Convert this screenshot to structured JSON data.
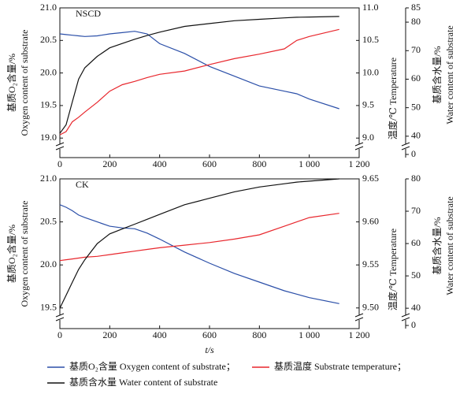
{
  "chart_data": [
    {
      "type": "line",
      "title": "NSCD",
      "x": [
        0,
        25,
        50,
        75,
        100,
        150,
        200,
        250,
        300,
        350,
        400,
        500,
        600,
        700,
        800,
        900,
        950,
        1000,
        1120
      ],
      "xlim": [
        0,
        1200
      ],
      "xticks": [
        0,
        200,
        400,
        600,
        800,
        {
          "value": 1000,
          "label": "1 000"
        },
        {
          "value": 1200,
          "label": "1 200"
        }
      ],
      "ylabel": [
        "基质O₂含量/%",
        "Oxygen content of substrate"
      ],
      "y2label": "温度/℃ Temperature",
      "y3label": [
        "基质含水量/%",
        "Water content of substrate"
      ],
      "ylim": [
        18.7,
        21.0
      ],
      "yticks": [
        {
          "value": 19.0,
          "label": "19.0"
        },
        19.5,
        {
          "value": 20.0,
          "label": "20.0"
        },
        20.5,
        {
          "value": 21.0,
          "label": "21.0"
        }
      ],
      "y2lim": [
        8.7,
        11.0
      ],
      "y2ticks": [
        {
          "value": 9.0,
          "label": "9.0"
        },
        9.5,
        {
          "value": 10.0,
          "label": "10.0"
        },
        10.5,
        {
          "value": 11.0,
          "label": "11.0"
        }
      ],
      "y3lim": [
        32.5,
        85
      ],
      "y3ticks": [
        40,
        50,
        60,
        70,
        80,
        85
      ],
      "y3_break_tick": 0,
      "series": [
        {
          "name": "基质O₂含量 Oxygen content of substrate；",
          "color": "#2b4fa8",
          "axis": "y",
          "values": [
            20.6,
            20.59,
            20.58,
            20.57,
            20.56,
            20.57,
            20.6,
            20.62,
            20.64,
            20.6,
            20.45,
            20.3,
            20.1,
            19.95,
            19.8,
            19.72,
            19.68,
            19.6,
            19.45
          ]
        },
        {
          "name": "基质温度 Substrate temperature；",
          "color": "#e8272d",
          "axis": "y2",
          "values": [
            9.05,
            9.1,
            9.25,
            9.32,
            9.4,
            9.55,
            9.72,
            9.82,
            9.87,
            9.93,
            9.98,
            10.03,
            10.13,
            10.22,
            10.29,
            10.37,
            10.5,
            10.56,
            10.67
          ]
        },
        {
          "name": "基质含水量 Water content of substrate",
          "color": "#111111",
          "axis": "y3",
          "values": [
            41,
            44,
            52,
            60,
            64,
            68,
            71,
            72.5,
            74,
            75.3,
            76.5,
            78.5,
            79.5,
            80.5,
            81,
            81.5,
            81.7,
            81.8,
            82
          ]
        }
      ]
    },
    {
      "type": "line",
      "title": "CK",
      "x": [
        0,
        25,
        50,
        75,
        100,
        150,
        200,
        250,
        300,
        350,
        400,
        500,
        600,
        700,
        800,
        900,
        950,
        1000,
        1120
      ],
      "xlim": [
        0,
        1200
      ],
      "xticks": [
        0,
        200,
        400,
        600,
        800,
        {
          "value": 1000,
          "label": "1 000"
        },
        {
          "value": 1200,
          "label": "1 200"
        }
      ],
      "xlabel": "t/s",
      "ylabel": [
        "基质O₂含量/%",
        "Oxygen content of substrate"
      ],
      "y2label": "温度/℃ Temperature",
      "y3label": [
        "基质含水量/%",
        "Water content of substrate"
      ],
      "ylim": [
        19.26,
        21.0
      ],
      "yticks": [
        19.5,
        {
          "value": 20.0,
          "label": "20.0"
        },
        20.5,
        {
          "value": 21.0,
          "label": "21.0"
        }
      ],
      "y2lim": [
        9.476,
        9.65
      ],
      "y2ticks": [
        {
          "value": 9.5,
          "label": "9.50"
        },
        9.55,
        {
          "value": 9.6,
          "label": "9.60"
        },
        9.65
      ],
      "y3lim": [
        33.7,
        80
      ],
      "y3ticks": [
        40,
        50,
        60,
        70,
        80
      ],
      "y3_break_tick": 0,
      "series": [
        {
          "color": "#2b4fa8",
          "axis": "y",
          "values": [
            20.7,
            20.67,
            20.63,
            20.58,
            20.55,
            20.5,
            20.45,
            20.43,
            20.42,
            20.37,
            20.3,
            20.15,
            20.02,
            19.9,
            19.8,
            19.7,
            19.66,
            19.62,
            19.55
          ]
        },
        {
          "color": "#e8272d",
          "axis": "y2",
          "values": [
            9.555,
            9.556,
            9.557,
            9.558,
            9.559,
            9.56,
            9.562,
            9.564,
            9.566,
            9.568,
            9.57,
            9.573,
            9.576,
            9.58,
            9.585,
            9.595,
            9.6,
            9.605,
            9.61
          ]
        },
        {
          "color": "#111111",
          "axis": "y3",
          "values": [
            40,
            44,
            48,
            52,
            55,
            60,
            63,
            64.5,
            66,
            67.5,
            69,
            72,
            74,
            76,
            77.5,
            78.5,
            79,
            79.3,
            80
          ]
        }
      ]
    }
  ]
}
